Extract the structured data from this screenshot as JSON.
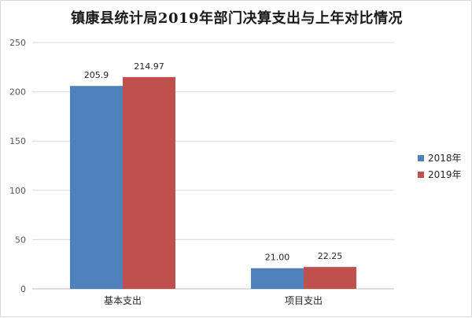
{
  "chart_data": {
    "type": "bar",
    "title": "镇康县统计局2019年部门决算支出与上年对比情况",
    "categories": [
      "基本支出",
      "项目支出"
    ],
    "series": [
      {
        "name": "2018年",
        "values": [
          205.9,
          21.0
        ],
        "labels": [
          "205.9",
          "21.00"
        ],
        "color": "#4f81bd"
      },
      {
        "name": "2019年",
        "values": [
          214.97,
          22.25
        ],
        "labels": [
          "214.97",
          "22.25"
        ],
        "color": "#c0504d"
      }
    ],
    "xlabel": "",
    "ylabel": "",
    "ylim": [
      0,
      250
    ],
    "yticks": [
      0,
      50,
      100,
      150,
      200,
      250
    ],
    "grid": true,
    "legend_position": "right"
  }
}
